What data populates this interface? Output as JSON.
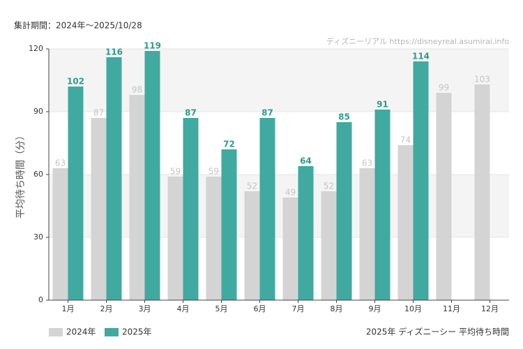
{
  "chart_data": {
    "type": "bar",
    "subtitle": "集計期間：2024年～2025/10/28",
    "watermark": "ディズニーリアル https://disneyreal.asumirai.info",
    "title": "2025年 ディズニーシー 平均待ち時間",
    "y_label": "平均待ち時間（分）",
    "categories": [
      "1月",
      "2月",
      "3月",
      "4月",
      "5月",
      "6月",
      "7月",
      "8月",
      "9月",
      "10月",
      "11月",
      "12月"
    ],
    "series": [
      {
        "name": "2024年",
        "color": "#d4d4d4",
        "label_color": "#c4c4c4",
        "values": [
          63,
          87,
          98,
          59,
          59,
          52,
          49,
          52,
          63,
          74,
          99,
          103
        ]
      },
      {
        "name": "2025年",
        "color": "#40a9a0",
        "label_color": "#2a9d8f",
        "values": [
          102,
          116,
          119,
          87,
          72,
          87,
          64,
          85,
          91,
          114,
          null,
          null
        ]
      }
    ],
    "ylim": [
      0,
      120
    ],
    "yticks": [
      0,
      30,
      60,
      90,
      120
    ],
    "grid": true,
    "legend": "bottom-left"
  }
}
